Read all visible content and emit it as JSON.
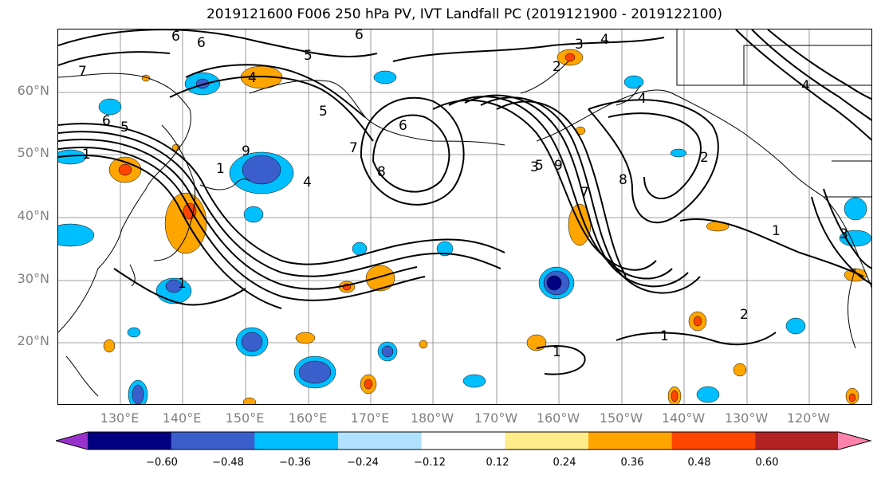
{
  "title": "2019121600 F006 250 hPa PV, IVT Landfall PC (2019121900 - 2019122100)",
  "lat_labels": [
    "60°N",
    "50°N",
    "40°N",
    "30°N",
    "20°N"
  ],
  "lon_labels": [
    "130°E",
    "140°E",
    "150°E",
    "160°E",
    "170°E",
    "180°W",
    "170°W",
    "160°W",
    "150°W",
    "140°W",
    "130°W",
    "120°W"
  ],
  "colorbar": {
    "ticks": [
      "−0.60",
      "−0.48",
      "−0.36",
      "−0.24",
      "−0.12",
      "0.12",
      "0.24",
      "0.36",
      "0.48",
      "0.60"
    ],
    "colors": [
      "#9932CC",
      "#000080",
      "#3A5FCD",
      "#00BFFF",
      "#B0E2FF",
      "#FFFFFF",
      "#FFEC8B",
      "#FFA500",
      "#FF4500",
      "#B22222",
      "#FF82AB"
    ]
  },
  "contour_labels": {
    "c6a": "6",
    "c6b": "6",
    "c6c": "6",
    "c6d": "6",
    "c6e": "6",
    "c5a": "5",
    "c5b": "5",
    "c5c": "5",
    "c5d": "5",
    "c7a": "7",
    "c7b": "7",
    "c7c": "7",
    "c4a": "4",
    "c4b": "4",
    "c4c": "4",
    "c4d": "4",
    "c4e": "4",
    "c3a": "3",
    "c3b": "3",
    "c3c": "3",
    "c2a": "2",
    "c2b": "2",
    "c2c": "2",
    "c1a": "1",
    "c1b": "1",
    "c1c": "1",
    "c1d": "1",
    "c1e": "1",
    "c1f": "1",
    "c8a": "8",
    "c8b": "8",
    "c9a": "9",
    "c9b": "9"
  },
  "colors": {
    "lat_lon_label": "#808080",
    "grid": "#808080"
  }
}
